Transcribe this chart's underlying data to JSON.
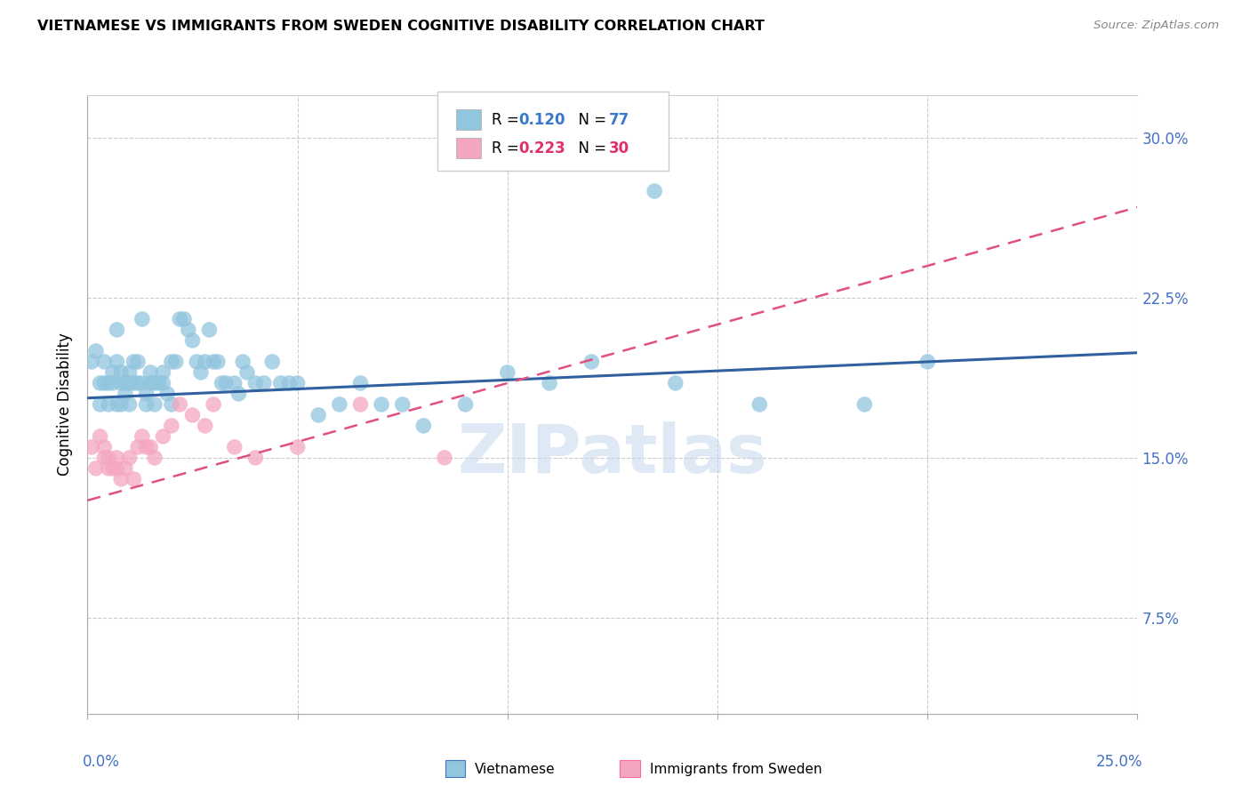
{
  "title": "VIETNAMESE VS IMMIGRANTS FROM SWEDEN COGNITIVE DISABILITY CORRELATION CHART",
  "source": "Source: ZipAtlas.com",
  "ylabel": "Cognitive Disability",
  "yticks": [
    "7.5%",
    "15.0%",
    "22.5%",
    "30.0%"
  ],
  "ytick_vals": [
    0.075,
    0.15,
    0.225,
    0.3
  ],
  "xlim": [
    0.0,
    0.25
  ],
  "ylim": [
    0.03,
    0.32
  ],
  "blue_color": "#92c5de",
  "pink_color": "#f4a6c0",
  "blue_line_color": "#3060a0",
  "pink_line_color": "#e05080",
  "watermark": "ZIPatlas",
  "viet_x": [
    0.001,
    0.002,
    0.003,
    0.003,
    0.004,
    0.004,
    0.005,
    0.005,
    0.006,
    0.006,
    0.007,
    0.007,
    0.007,
    0.008,
    0.008,
    0.008,
    0.009,
    0.009,
    0.01,
    0.01,
    0.01,
    0.011,
    0.011,
    0.012,
    0.012,
    0.013,
    0.013,
    0.014,
    0.014,
    0.015,
    0.015,
    0.016,
    0.016,
    0.017,
    0.018,
    0.018,
    0.019,
    0.02,
    0.02,
    0.021,
    0.022,
    0.023,
    0.024,
    0.025,
    0.026,
    0.027,
    0.028,
    0.029,
    0.03,
    0.031,
    0.032,
    0.033,
    0.035,
    0.036,
    0.037,
    0.038,
    0.04,
    0.042,
    0.044,
    0.046,
    0.048,
    0.05,
    0.055,
    0.06,
    0.065,
    0.07,
    0.075,
    0.08,
    0.09,
    0.1,
    0.11,
    0.12,
    0.14,
    0.16,
    0.185,
    0.2,
    0.135
  ],
  "viet_y": [
    0.195,
    0.2,
    0.175,
    0.185,
    0.185,
    0.195,
    0.185,
    0.175,
    0.185,
    0.19,
    0.195,
    0.175,
    0.21,
    0.185,
    0.19,
    0.175,
    0.185,
    0.18,
    0.185,
    0.19,
    0.175,
    0.185,
    0.195,
    0.185,
    0.195,
    0.185,
    0.215,
    0.18,
    0.175,
    0.19,
    0.185,
    0.175,
    0.185,
    0.185,
    0.185,
    0.19,
    0.18,
    0.175,
    0.195,
    0.195,
    0.215,
    0.215,
    0.21,
    0.205,
    0.195,
    0.19,
    0.195,
    0.21,
    0.195,
    0.195,
    0.185,
    0.185,
    0.185,
    0.18,
    0.195,
    0.19,
    0.185,
    0.185,
    0.195,
    0.185,
    0.185,
    0.185,
    0.17,
    0.175,
    0.185,
    0.175,
    0.175,
    0.165,
    0.175,
    0.19,
    0.185,
    0.195,
    0.185,
    0.175,
    0.175,
    0.195,
    0.275
  ],
  "sweden_x": [
    0.001,
    0.002,
    0.003,
    0.004,
    0.004,
    0.005,
    0.005,
    0.006,
    0.007,
    0.007,
    0.008,
    0.009,
    0.01,
    0.011,
    0.012,
    0.013,
    0.014,
    0.015,
    0.016,
    0.018,
    0.02,
    0.022,
    0.025,
    0.028,
    0.03,
    0.035,
    0.04,
    0.05,
    0.065,
    0.085
  ],
  "sweden_y": [
    0.155,
    0.145,
    0.16,
    0.155,
    0.15,
    0.15,
    0.145,
    0.145,
    0.15,
    0.145,
    0.14,
    0.145,
    0.15,
    0.14,
    0.155,
    0.16,
    0.155,
    0.155,
    0.15,
    0.16,
    0.165,
    0.175,
    0.17,
    0.165,
    0.175,
    0.155,
    0.15,
    0.155,
    0.175,
    0.15
  ],
  "legend_r1": "R = ",
  "legend_v1": "0.120",
  "legend_n1": "  N = ",
  "legend_nv1": "77",
  "legend_r2": "R = ",
  "legend_v2": "0.223",
  "legend_n2": "  N = ",
  "legend_nv2": "30",
  "blue_text_color": "#3878c8",
  "pink_text_color": "#e0306a"
}
